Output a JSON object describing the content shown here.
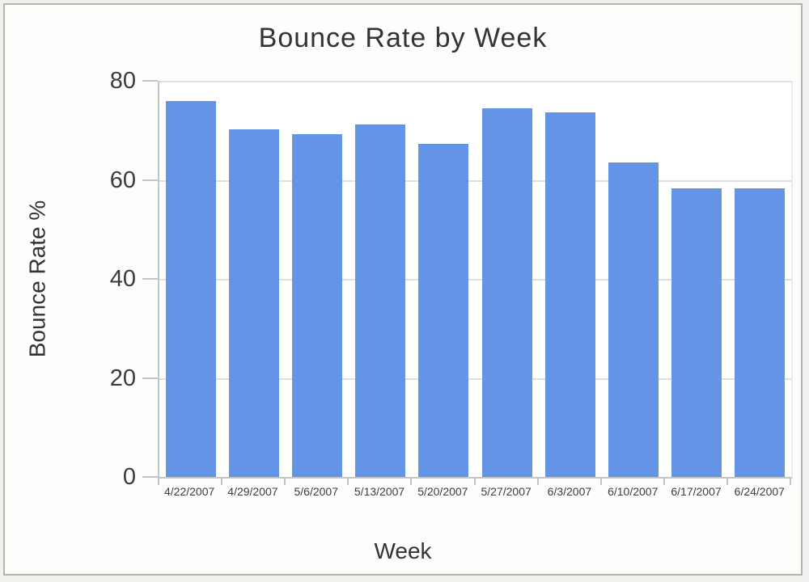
{
  "window": {
    "background": "#f0f0ee",
    "panel_background": "#fdfdfb",
    "border_color": "#b5b3b0"
  },
  "chart_data": {
    "type": "bar",
    "title": "Bounce Rate by Week",
    "xlabel": "Week",
    "ylabel": "Bounce Rate %",
    "categories": [
      "4/22/2007",
      "4/29/2007",
      "5/6/2007",
      "5/13/2007",
      "5/20/2007",
      "5/27/2007",
      "6/3/2007",
      "6/10/2007",
      "6/17/2007",
      "6/24/2007"
    ],
    "values": [
      76.0,
      70.2,
      69.2,
      71.2,
      67.3,
      74.4,
      73.7,
      63.5,
      58.3,
      58.3
    ],
    "ylim": [
      0,
      80
    ],
    "yticks": [
      0,
      20,
      40,
      60,
      80
    ],
    "grid": true,
    "legend_position": "none",
    "bar_color": "#6494e6",
    "gridline_color": "#dfdfdf",
    "axis_color": "#c4c4c4",
    "text_color": "#333333"
  }
}
